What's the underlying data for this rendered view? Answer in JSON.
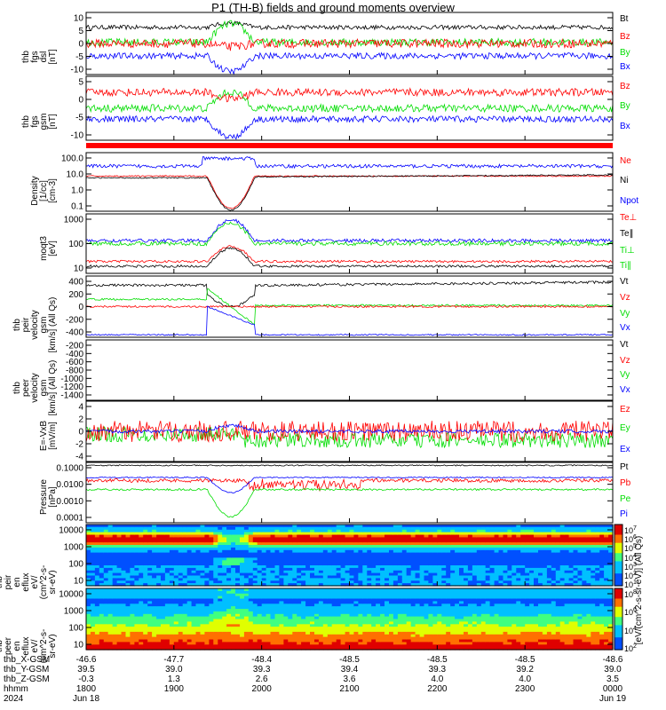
{
  "title": "P1 (TH-B) fields and ground moments overview",
  "colors": {
    "black": "#000000",
    "red": "#ff0000",
    "green": "#00dd00",
    "blue": "#0000ff"
  },
  "chart_data": [
    {
      "type": "line",
      "panel": "fgs-dsl",
      "ylabel": [
        "thb",
        "fgs",
        "dsl",
        "[nT]"
      ],
      "yticks": [
        "10",
        "5",
        "0",
        "-5",
        "-10"
      ],
      "ylim": [
        -11,
        11
      ],
      "series": [
        {
          "name": "Bt",
          "color": "black",
          "base": 6,
          "noise": 2
        },
        {
          "name": "Bz",
          "color": "red",
          "base": 0,
          "noise": 3
        },
        {
          "name": "By",
          "color": "green",
          "base": 1,
          "noise": 3
        },
        {
          "name": "Bx",
          "color": "blue",
          "base": -5,
          "noise": 2
        }
      ]
    },
    {
      "type": "line",
      "panel": "fgs-gsm",
      "ylabel": [
        "thb",
        "fgs",
        "gsm",
        "[nT]"
      ],
      "yticks": [
        "5",
        "0",
        "-5",
        "-10"
      ],
      "ylim": [
        -13,
        9
      ],
      "series": [
        {
          "name": "Bz",
          "color": "red",
          "base": 3,
          "noise": 2
        },
        {
          "name": "By",
          "color": "green",
          "base": -1,
          "noise": 2
        },
        {
          "name": "Bx",
          "color": "blue",
          "base": -5,
          "noise": 2
        }
      ]
    },
    {
      "type": "line",
      "panel": "density",
      "ylabel": [
        "Density",
        "[1/cc]",
        "[cm-3]"
      ],
      "yticks": [
        "100.0",
        "10.0",
        "1.0",
        "0.1"
      ],
      "log": true,
      "series": [
        {
          "name": "Ne",
          "color": "red"
        },
        {
          "name": "Ni",
          "color": "black"
        },
        {
          "name": "Npot",
          "color": "blue"
        }
      ]
    },
    {
      "type": "line",
      "panel": "temperature",
      "ylabel": [
        "moqt3",
        "[eV]"
      ],
      "yticks": [
        "1000",
        "100",
        "10"
      ],
      "log": true,
      "series": [
        {
          "name": "Te⊥",
          "color": "red"
        },
        {
          "name": "Te∥",
          "color": "black"
        },
        {
          "name": "Ti⊥",
          "color": "green"
        },
        {
          "name": "Ti∥",
          "color": "green"
        }
      ]
    },
    {
      "type": "line",
      "panel": "peir-velocity",
      "ylabel": [
        "thb",
        "peir",
        "velocity",
        "gsm",
        "[km/s] (All Qs)"
      ],
      "yticks": [
        "400",
        "200",
        "0",
        "-200",
        "-400"
      ],
      "ylim": [
        -500,
        500
      ],
      "series": [
        {
          "name": "Vt",
          "color": "black"
        },
        {
          "name": "Vz",
          "color": "red"
        },
        {
          "name": "Vy",
          "color": "green"
        },
        {
          "name": "Vx",
          "color": "blue"
        }
      ]
    },
    {
      "type": "line",
      "panel": "peer-velocity",
      "ylabel": [
        "thb",
        "peer",
        "velocity",
        "gsm",
        "[km/s] (All Qs)"
      ],
      "yticks": [
        "-200",
        "-400",
        "-600",
        "-800",
        "-1000",
        "-1200",
        "-1400"
      ],
      "series": [
        {
          "name": "Vt",
          "color": "black"
        },
        {
          "name": "Vz",
          "color": "red"
        },
        {
          "name": "Vy",
          "color": "green"
        },
        {
          "name": "Vx",
          "color": "blue"
        }
      ]
    },
    {
      "type": "line",
      "panel": "efield",
      "ylabel": [
        "E=-VxB",
        "[mV/m]"
      ],
      "yticks": [
        "4",
        "2",
        "0",
        "-2",
        "-4"
      ],
      "ylim": [
        -4,
        4
      ],
      "series": [
        {
          "name": "Ez",
          "color": "red"
        },
        {
          "name": "Ey",
          "color": "green"
        },
        {
          "name": "Ex",
          "color": "blue"
        }
      ]
    },
    {
      "type": "line",
      "panel": "pressure",
      "ylabel": [
        "Pressure",
        "[nPa]"
      ],
      "yticks": [
        "0.1000",
        "0.0100",
        "0.0010",
        "0.0001"
      ],
      "log": true,
      "series": [
        {
          "name": "Pt",
          "color": "black"
        },
        {
          "name": "Pb",
          "color": "red"
        },
        {
          "name": "Pe",
          "color": "green"
        },
        {
          "name": "Pi",
          "color": "blue"
        }
      ]
    },
    {
      "type": "heatmap",
      "panel": "peir-spectrogram",
      "ylabel": [
        "thb",
        "peir",
        "en",
        "eflux",
        "eV/",
        "(cm^2-s-",
        "sr-eV)"
      ],
      "yticks": [
        "10000",
        "1000",
        "100",
        "10"
      ],
      "colorbar": {
        "label": "[eV/(cm^2-s-sr-eV)] (All Qs)",
        "ticks": [
          "10^7",
          "10^6",
          "10^5",
          "10^4",
          "10^3",
          "10^2",
          "10^1"
        ]
      }
    },
    {
      "type": "heatmap",
      "panel": "peer-spectrogram",
      "ylabel": [
        "thb",
        "peer",
        "en",
        "eflux",
        "eV/",
        "(cm^2-s-",
        "sr-eV)"
      ],
      "yticks": [
        "10000",
        "1000",
        "100",
        "10"
      ],
      "colorbar": {
        "label": "[eV/(cm^2-s-sr-eV)]",
        "ticks": [
          "10^8",
          "10^6",
          "10^4",
          "10^2"
        ]
      }
    }
  ],
  "ephemeris": {
    "rows": [
      {
        "label": "thb_X-GSM",
        "values": [
          "-46.6",
          "-47.7",
          "-48.4",
          "-48.5",
          "-48.5",
          "-48.5",
          "-48.6"
        ]
      },
      {
        "label": "thb_Y-GSM",
        "values": [
          "39.5",
          "39.0",
          "39.3",
          "39.4",
          "39.3",
          "39.2",
          "39.0"
        ]
      },
      {
        "label": "thb_Z-GSM",
        "values": [
          "-0.3",
          "1.3",
          "2.6",
          "3.6",
          "4.0",
          "4.0",
          "3.5"
        ]
      },
      {
        "label": "hhmm",
        "values": [
          "1800",
          "1900",
          "2000",
          "2100",
          "2200",
          "2300",
          "0000"
        ]
      },
      {
        "label": "2024",
        "values": [
          "Jun 18",
          "",
          "",
          "",
          "",
          "",
          "Jun 19"
        ]
      }
    ]
  }
}
